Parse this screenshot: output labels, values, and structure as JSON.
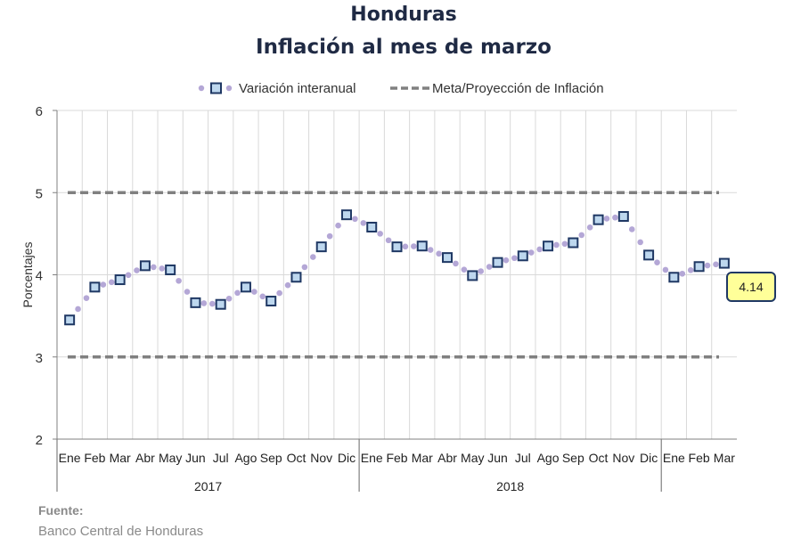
{
  "title": "Honduras",
  "subtitle": "Inflación al mes de marzo",
  "legend": {
    "series_label": "Variación interanual",
    "meta_label": "Meta/Proyección de Inflación"
  },
  "source": {
    "label": "Fuente:",
    "text": "Banco Central de Honduras"
  },
  "colors": {
    "title": "#1f2a44",
    "marker_border": "#1f3864",
    "marker_fill": "#bdd7ee",
    "dots": "#b4a7d6",
    "meta_line": "#808080",
    "callout_fill": "#ffff99",
    "callout_border": "#1f3864"
  },
  "chart_data": {
    "type": "line",
    "ylabel": "Porcentajes",
    "xlabel": "",
    "ylim": [
      2,
      6
    ],
    "yticks": [
      "2",
      "3",
      "4",
      "5",
      "6"
    ],
    "grid": true,
    "legend_position": "top",
    "categories": [
      "Ene",
      "Feb",
      "Mar",
      "Abr",
      "May",
      "Jun",
      "Jul",
      "Ago",
      "Sep",
      "Oct",
      "Nov",
      "Dic",
      "Ene",
      "Feb",
      "Mar",
      "Abr",
      "May",
      "Jun",
      "Jul",
      "Ago",
      "Sep",
      "Oct",
      "Nov",
      "Dic",
      "Ene",
      "Feb",
      "Mar"
    ],
    "years": [
      {
        "label": "2017",
        "count": 12
      },
      {
        "label": "2018",
        "count": 12
      },
      {
        "label": "",
        "count": 3
      }
    ],
    "series": [
      {
        "name": "Variación interanual",
        "values": [
          3.45,
          3.85,
          3.94,
          4.11,
          4.06,
          3.66,
          3.64,
          3.85,
          3.68,
          3.97,
          4.34,
          4.73,
          4.58,
          4.34,
          4.35,
          4.21,
          3.99,
          4.15,
          4.23,
          4.35,
          4.39,
          4.67,
          4.71,
          4.24,
          3.97,
          4.1,
          4.14
        ]
      },
      {
        "name": "Meta/Proyección de Inflación",
        "upper": 5,
        "lower": 3
      }
    ],
    "annotation": {
      "text": "4.14",
      "point_index": 26
    }
  }
}
